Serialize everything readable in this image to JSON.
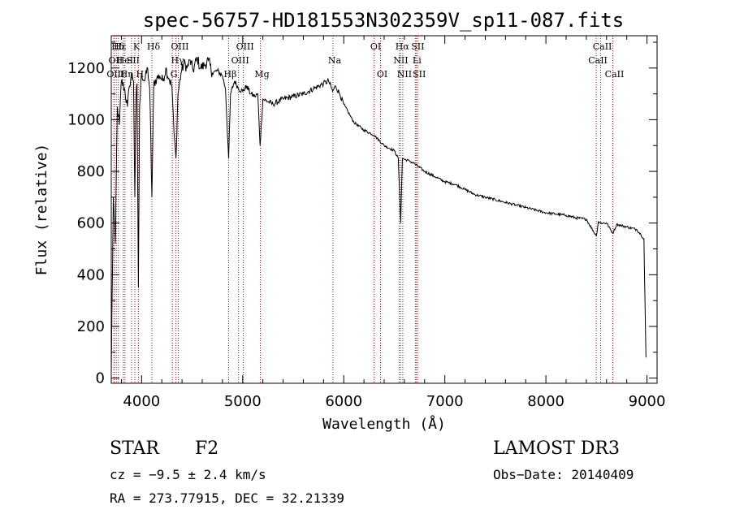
{
  "chart_data": {
    "type": "line",
    "title": "spec-56757-HD181553N302359V_sp11-087.fits",
    "xlabel": "Wavelength (Å)",
    "ylabel": "Flux (relative)",
    "xlim": [
      3700,
      9100
    ],
    "ylim": [
      -20,
      1325
    ],
    "x_ticks": [
      4000,
      5000,
      6000,
      7000,
      8000,
      9000
    ],
    "y_ticks": [
      0,
      200,
      400,
      600,
      800,
      1000,
      1200
    ],
    "grid": false,
    "series": [
      {
        "name": "flux",
        "points": [
          [
            3700,
            20
          ],
          [
            3720,
            700
          ],
          [
            3740,
            520
          ],
          [
            3760,
            1050
          ],
          [
            3780,
            980
          ],
          [
            3800,
            1150
          ],
          [
            3830,
            1120
          ],
          [
            3860,
            1050
          ],
          [
            3880,
            1130
          ],
          [
            3900,
            1180
          ],
          [
            3920,
            1150
          ],
          [
            3933,
            700
          ],
          [
            3945,
            1080
          ],
          [
            3955,
            1140
          ],
          [
            3968,
            350
          ],
          [
            3980,
            1050
          ],
          [
            4000,
            1180
          ],
          [
            4030,
            1150
          ],
          [
            4060,
            1200
          ],
          [
            4080,
            1120
          ],
          [
            4102,
            700
          ],
          [
            4120,
            1140
          ],
          [
            4150,
            1160
          ],
          [
            4180,
            1170
          ],
          [
            4210,
            1150
          ],
          [
            4240,
            1200
          ],
          [
            4270,
            1160
          ],
          [
            4300,
            1130
          ],
          [
            4320,
            950
          ],
          [
            4340,
            850
          ],
          [
            4360,
            1100
          ],
          [
            4390,
            1180
          ],
          [
            4420,
            1220
          ],
          [
            4450,
            1200
          ],
          [
            4480,
            1230
          ],
          [
            4510,
            1190
          ],
          [
            4550,
            1240
          ],
          [
            4580,
            1200
          ],
          [
            4620,
            1210
          ],
          [
            4660,
            1230
          ],
          [
            4700,
            1180
          ],
          [
            4750,
            1190
          ],
          [
            4800,
            1170
          ],
          [
            4830,
            1120
          ],
          [
            4861,
            850
          ],
          [
            4880,
            1100
          ],
          [
            4920,
            1150
          ],
          [
            4960,
            1120
          ],
          [
            5000,
            1110
          ],
          [
            5040,
            1130
          ],
          [
            5080,
            1100
          ],
          [
            5120,
            1090
          ],
          [
            5150,
            1100
          ],
          [
            5172,
            900
          ],
          [
            5200,
            1080
          ],
          [
            5300,
            1060
          ],
          [
            5400,
            1080
          ],
          [
            5500,
            1090
          ],
          [
            5600,
            1100
          ],
          [
            5700,
            1120
          ],
          [
            5800,
            1140
          ],
          [
            5850,
            1150
          ],
          [
            5890,
            1110
          ],
          [
            5920,
            1130
          ],
          [
            5960,
            1100
          ],
          [
            6000,
            1060
          ],
          [
            6100,
            990
          ],
          [
            6200,
            960
          ],
          [
            6300,
            940
          ],
          [
            6400,
            900
          ],
          [
            6500,
            880
          ],
          [
            6540,
            850
          ],
          [
            6563,
            600
          ],
          [
            6580,
            850
          ],
          [
            6650,
            840
          ],
          [
            6700,
            830
          ],
          [
            6800,
            800
          ],
          [
            6900,
            780
          ],
          [
            7000,
            760
          ],
          [
            7100,
            750
          ],
          [
            7200,
            730
          ],
          [
            7300,
            710
          ],
          [
            7400,
            700
          ],
          [
            7500,
            690
          ],
          [
            7600,
            680
          ],
          [
            7700,
            670
          ],
          [
            7800,
            660
          ],
          [
            7900,
            650
          ],
          [
            8000,
            640
          ],
          [
            8100,
            635
          ],
          [
            8200,
            630
          ],
          [
            8300,
            620
          ],
          [
            8400,
            615
          ],
          [
            8498,
            550
          ],
          [
            8520,
            605
          ],
          [
            8542,
            600
          ],
          [
            8600,
            600
          ],
          [
            8662,
            560
          ],
          [
            8700,
            595
          ],
          [
            8800,
            585
          ],
          [
            8900,
            575
          ],
          [
            8940,
            555
          ],
          [
            8970,
            540
          ],
          [
            8980,
            300
          ],
          [
            8990,
            80
          ]
        ]
      }
    ],
    "line_markers": [
      {
        "label": "Hδ",
        "x": 3750,
        "row": 1
      },
      {
        "label": "OII",
        "x": 3727,
        "row": 2
      },
      {
        "label": "OIII",
        "x": 3727,
        "row": 3
      },
      {
        "label": "Hε",
        "x": 3770,
        "row": 1
      },
      {
        "label": "HeI",
        "x": 3820,
        "row": 2
      },
      {
        "label": "Hη",
        "x": 3835,
        "row": 3
      },
      {
        "label": "K",
        "x": 3933,
        "row": 1
      },
      {
        "label": "SII",
        "x": 3900,
        "row": 2
      },
      {
        "label": "H",
        "x": 3968,
        "row": 3
      },
      {
        "label": "Hδ",
        "x": 4102,
        "row": 1
      },
      {
        "label": "OIII",
        "x": 4363,
        "row": 1
      },
      {
        "label": "Hγ",
        "x": 4340,
        "row": 2
      },
      {
        "label": "G",
        "x": 4304,
        "row": 3
      },
      {
        "label": "OIII",
        "x": 5007,
        "row": 1
      },
      {
        "label": "OIII",
        "x": 4959,
        "row": 2
      },
      {
        "label": "Hβ",
        "x": 4861,
        "row": 3
      },
      {
        "label": "Mg",
        "x": 5175,
        "row": 3
      },
      {
        "label": "Na",
        "x": 5893,
        "row": 2
      },
      {
        "label": "OI",
        "x": 6300,
        "row": 1
      },
      {
        "label": "OI",
        "x": 6364,
        "row": 3
      },
      {
        "label": "Hα",
        "x": 6563,
        "row": 1
      },
      {
        "label": "SII",
        "x": 6716,
        "row": 1
      },
      {
        "label": "NII",
        "x": 6548,
        "row": 2
      },
      {
        "label": "Li",
        "x": 6708,
        "row": 2
      },
      {
        "label": "NII",
        "x": 6584,
        "row": 3
      },
      {
        "label": "SII",
        "x": 6731,
        "row": 3
      },
      {
        "label": "CaII",
        "x": 8542,
        "row": 1
      },
      {
        "label": "CaII",
        "x": 8498,
        "row": 2
      },
      {
        "label": "CaII",
        "x": 8662,
        "row": 3
      }
    ]
  },
  "footer": {
    "object_class": "STAR",
    "subclass": "F2",
    "survey": "LAMOST DR3",
    "cz": "cz = −9.5 ± 2.4 km/s",
    "obs_date": "Obs−Date: 20140409",
    "coords": "RA = 273.77915, DEC =  32.21339"
  }
}
